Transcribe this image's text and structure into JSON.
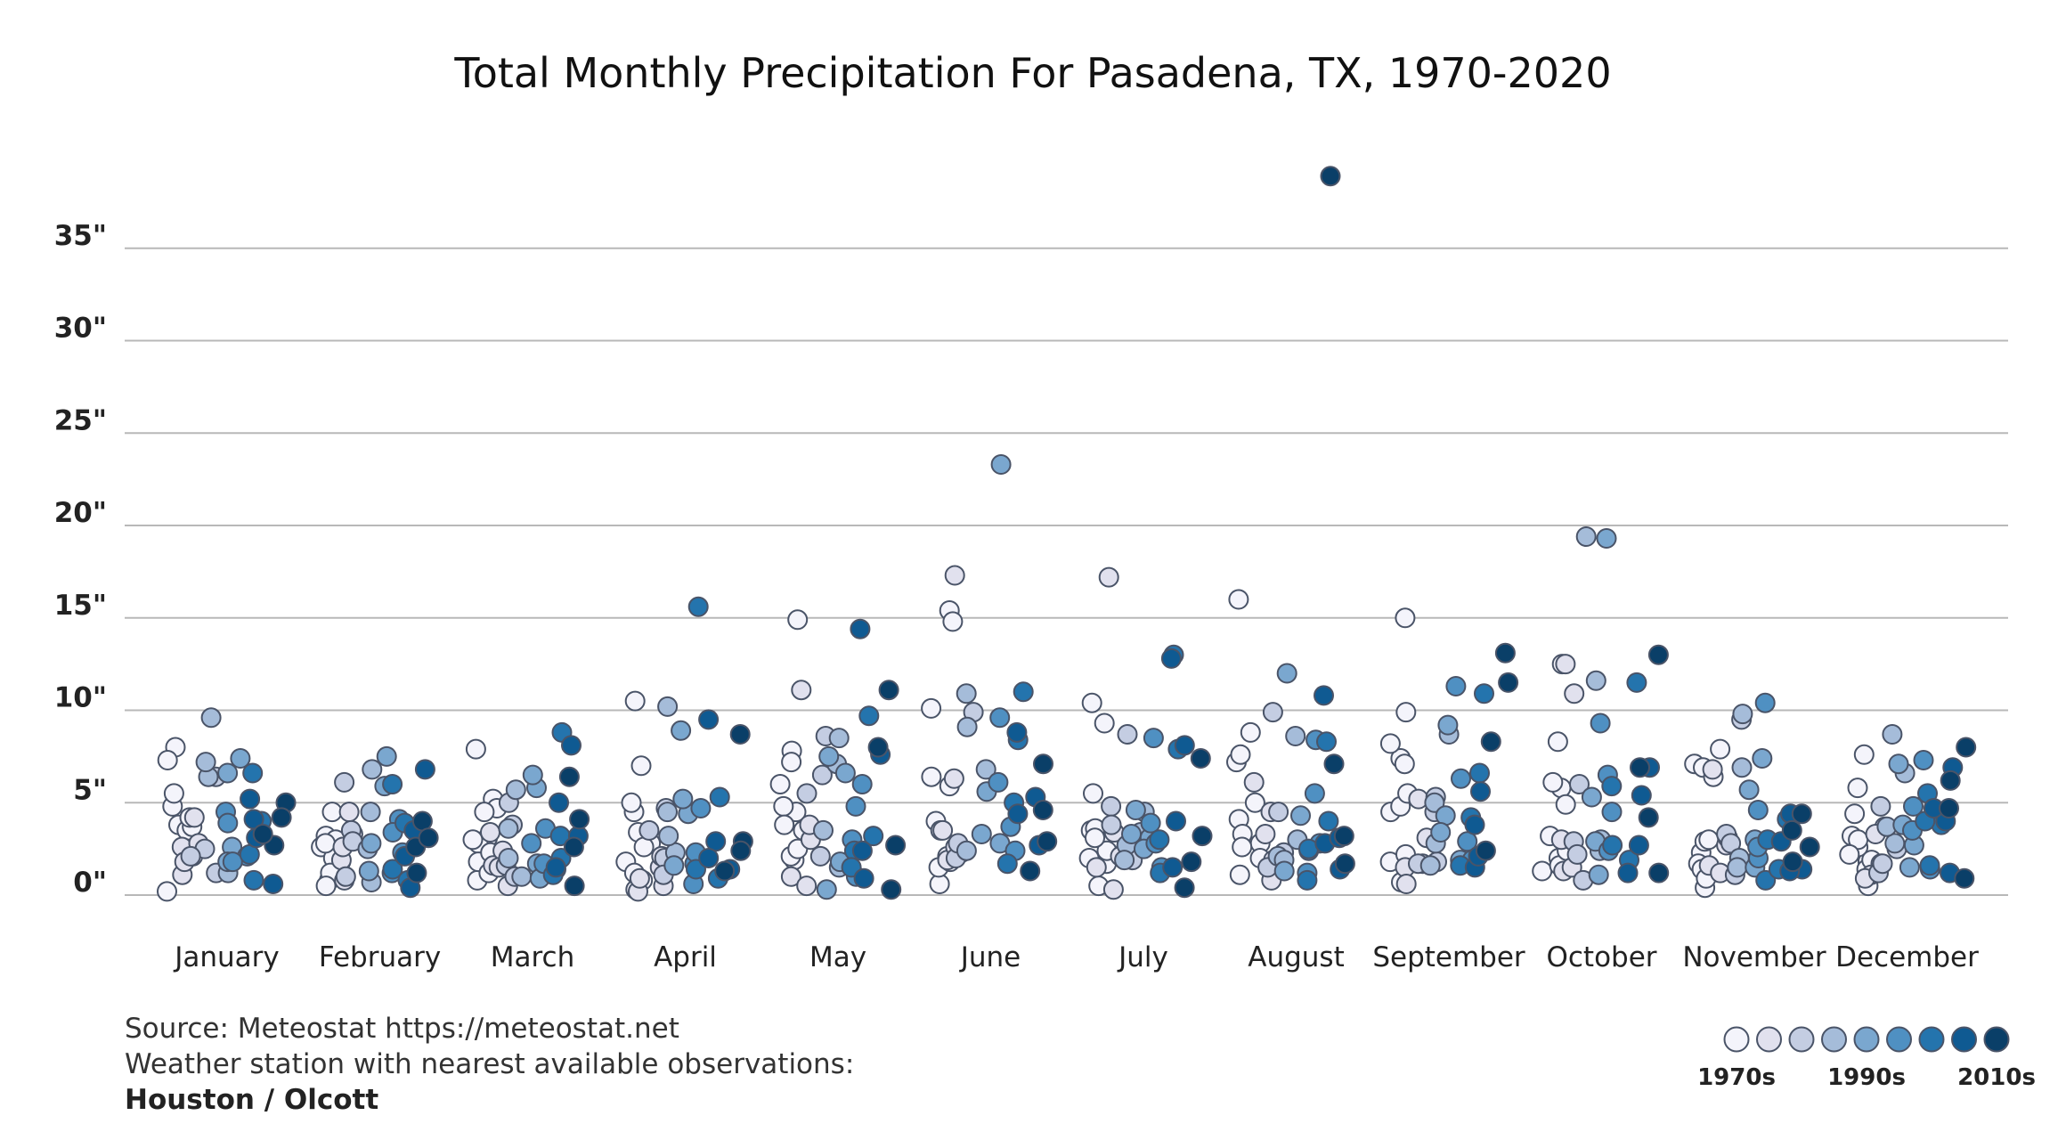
{
  "chart_data": {
    "type": "scatter",
    "title": "Total Monthly Precipitation For Pasadena, TX, 1970-2020",
    "ylim": [
      0,
      39
    ],
    "y_ticks": [
      0,
      5,
      10,
      15,
      20,
      25,
      30,
      35
    ],
    "y_tick_labels": [
      "0\"",
      "5\"",
      "10\"",
      "15\"",
      "20\"",
      "25\"",
      "30\"",
      "35\""
    ],
    "grid": true,
    "categories": [
      "January",
      "February",
      "March",
      "April",
      "May",
      "June",
      "July",
      "August",
      "September",
      "October",
      "November",
      "December"
    ],
    "color_scale": {
      "colors": [
        "#f4f4fb",
        "#e1e1ee",
        "#c4cde2",
        "#a5bcd9",
        "#7aa7cf",
        "#4f90c2",
        "#2474ad",
        "#0f5a92",
        "#0a3f68"
      ],
      "labels": [
        "1970s",
        "",
        "",
        "",
        "1990s",
        "",
        "",
        "",
        "2010s"
      ]
    },
    "series": [
      {
        "name": "1970s",
        "decade_index": 0,
        "month_values": [
          [
            0.2,
            2.5,
            3.8,
            4.8,
            3.5,
            8.0,
            3.7,
            5.5,
            2.1,
            7.3,
            4.2
          ],
          [
            1.8,
            3.2,
            0.8,
            2.6,
            1.4,
            4.5,
            2.0,
            3.0,
            1.2,
            2.8,
            0.5
          ],
          [
            0.8,
            5.2,
            3.1,
            4.7,
            2.8,
            1.8,
            7.9,
            4.5,
            1.2,
            2.3,
            3.0
          ],
          [
            0.3,
            2.8,
            10.5,
            7.0,
            1.8,
            4.5,
            3.4,
            2.6,
            1.2,
            5.0,
            0.8
          ],
          [
            1.9,
            14.9,
            7.8,
            3.5,
            4.5,
            7.2,
            2.1,
            6.0,
            4.8,
            2.5,
            3.8
          ],
          [
            0.6,
            1.5,
            5.9,
            15.4,
            14.8,
            2.1,
            10.1,
            4.0,
            1.8,
            3.5,
            6.4
          ],
          [
            2.0,
            3.5,
            9.3,
            10.4,
            2.8,
            3.6,
            1.7,
            2.4,
            5.5,
            3.1,
            0.5
          ],
          [
            2.8,
            16.0,
            8.8,
            7.2,
            2.0,
            4.1,
            3.3,
            7.6,
            1.1,
            2.6,
            5.0
          ],
          [
            1.8,
            9.9,
            7.4,
            4.5,
            4.8,
            7.1,
            15.0,
            5.5,
            2.2,
            8.2,
            0.7
          ],
          [
            1.6,
            8.3,
            12.5,
            2.0,
            1.3,
            5.8,
            4.9,
            3.2,
            1.6,
            6.1,
            2.4
          ],
          [
            0.4,
            7.1,
            2.3,
            6.9,
            1.7,
            7.9,
            2.9,
            6.4,
            1.4,
            3.0,
            0.9
          ],
          [
            1.8,
            0.5,
            5.8,
            3.2,
            7.6,
            2.6,
            1.4,
            3.0,
            1.9,
            2.2,
            4.4
          ]
        ]
      },
      {
        "name": "",
        "decade_index": 1,
        "month_values": [
          [
            2.6,
            1.1,
            2.8,
            4.2,
            1.8
          ],
          [
            1.9,
            2.6,
            3.3,
            4.5,
            0.8
          ],
          [
            1.6,
            0.5,
            2.4,
            1.5,
            3.4
          ],
          [
            0.2,
            1.5,
            0.5,
            2.1,
            0.9
          ],
          [
            11.1,
            1.0,
            3.0,
            0.5,
            3.8
          ],
          [
            17.3,
            3.5,
            1.9,
            6.3,
            2.6
          ],
          [
            17.2,
            2.1,
            0.3,
            3.4,
            1.5
          ],
          [
            3.3,
            1.9,
            6.1,
            4.5,
            0.8
          ],
          [
            1.5,
            3.1,
            0.6,
            1.7,
            5.2
          ],
          [
            12.5,
            1.3,
            10.9,
            1.5,
            3.0
          ],
          [
            1.6,
            2.7,
            6.8,
            1.2,
            3.1
          ],
          [
            1.1,
            3.7,
            1.7,
            3.3,
            0.9
          ]
        ]
      },
      {
        "name": "",
        "decade_index": 2,
        "month_values": [
          [
            1.2,
            2.5,
            6.4,
            2.1
          ],
          [
            1.0,
            3.5,
            6.1,
            2.9
          ],
          [
            1.6,
            1.0,
            5.0,
            3.8
          ],
          [
            3.5,
            2.0,
            1.1,
            4.7
          ],
          [
            8.6,
            6.5,
            5.5,
            2.1
          ],
          [
            9.9,
            2.3,
            2.0,
            2.8
          ],
          [
            4.8,
            8.7,
            3.8,
            1.9
          ],
          [
            2.3,
            1.5,
            4.5,
            9.9
          ],
          [
            1.7,
            4.5,
            1.8,
            5.3
          ],
          [
            2.9,
            6.0,
            2.2,
            0.8
          ],
          [
            3.3,
            1.1,
            2.8,
            9.5
          ],
          [
            4.8,
            1.2,
            1.7,
            2.5
          ]
        ]
      },
      {
        "name": "",
        "decade_index": 3,
        "month_values": [
          [
            6.4,
            9.6,
            7.2,
            1.2
          ],
          [
            6.8,
            0.7,
            2.5,
            4.5
          ],
          [
            5.7,
            3.6,
            2.0,
            1.0
          ],
          [
            4.5,
            10.2,
            2.3,
            3.2
          ],
          [
            8.5,
            7.1,
            1.5,
            3.5
          ],
          [
            10.9,
            6.8,
            9.1,
            2.4
          ],
          [
            2.7,
            4.5,
            1.9,
            3.4
          ],
          [
            3.0,
            2.1,
            8.6,
            1.9
          ],
          [
            2.8,
            1.6,
            5.0,
            8.7
          ],
          [
            11.6,
            2.4,
            3.0,
            19.4
          ],
          [
            2.0,
            9.8,
            6.9,
            1.5
          ],
          [
            6.6,
            8.7,
            2.8,
            3.7
          ]
        ]
      },
      {
        "name": "1990s",
        "decade_index": 4,
        "month_values": [
          [
            7.4,
            6.6,
            2.6,
            1.8
          ],
          [
            7.5,
            1.3,
            5.9,
            2.8
          ],
          [
            5.8,
            1.7,
            6.5,
            0.9
          ],
          [
            4.4,
            8.9,
            1.6,
            5.2
          ],
          [
            6.6,
            1.8,
            0.3,
            7.5
          ],
          [
            23.3,
            2.8,
            5.6,
            3.3
          ],
          [
            3.1,
            2.5,
            3.3,
            4.6
          ],
          [
            12.0,
            4.3,
            1.3,
            2.4
          ],
          [
            9.2,
            1.9,
            4.3,
            3.4
          ],
          [
            5.3,
            19.3,
            2.9,
            1.1
          ],
          [
            7.4,
            3.0,
            1.5,
            5.7
          ],
          [
            7.1,
            3.8,
            2.7,
            1.5
          ]
        ]
      },
      {
        "name": "",
        "decade_index": 5,
        "month_values": [
          [
            4.5,
            2.1,
            3.9,
            1.8
          ],
          [
            4.1,
            1.2,
            2.3,
            3.4
          ],
          [
            1.4,
            3.6,
            2.8,
            1.7
          ],
          [
            1.7,
            4.7,
            0.6,
            2.3
          ],
          [
            4.8,
            3.0,
            6.0,
            1.0
          ],
          [
            9.6,
            2.4,
            6.1,
            3.7
          ],
          [
            2.8,
            8.5,
            1.5,
            3.9
          ],
          [
            5.5,
            2.8,
            1.2,
            8.4
          ],
          [
            11.3,
            2.9,
            1.9,
            6.3
          ],
          [
            9.3,
            4.5,
            2.4,
            6.5
          ],
          [
            4.6,
            2.0,
            2.6,
            10.4
          ],
          [
            3.5,
            4.8,
            7.3,
            1.4
          ]
        ]
      },
      {
        "name": "",
        "decade_index": 6,
        "month_values": [
          [
            4.0,
            0.8,
            6.6,
            2.2
          ],
          [
            6.0,
            1.4,
            0.8,
            3.9
          ],
          [
            8.8,
            1.1,
            3.2,
            2.0
          ],
          [
            15.6,
            1.4,
            5.3,
            0.9
          ],
          [
            9.7,
            2.4,
            1.5,
            3.2
          ],
          [
            11.0,
            8.4,
            5.0,
            1.7
          ],
          [
            13.0,
            7.9,
            3.0,
            1.2
          ],
          [
            8.3,
            0.8,
            4.0,
            2.5
          ],
          [
            10.9,
            1.6,
            6.6,
            4.2
          ],
          [
            11.5,
            5.9,
            1.9,
            2.7
          ],
          [
            4.1,
            0.8,
            3.0,
            1.4
          ],
          [
            5.5,
            3.8,
            1.6,
            4.0
          ]
        ]
      },
      {
        "name": "",
        "decade_index": 7,
        "month_values": [
          [
            0.6,
            5.2,
            3.1,
            4.1
          ],
          [
            6.8,
            2.1,
            0.4,
            3.5
          ],
          [
            8.1,
            5.0,
            1.5,
            3.2
          ],
          [
            9.5,
            1.4,
            2.9,
            2.0
          ],
          [
            14.4,
            7.6,
            0.9,
            2.4
          ],
          [
            8.8,
            5.3,
            2.7,
            4.4
          ],
          [
            12.8,
            8.1,
            1.5,
            4.0
          ],
          [
            10.8,
            2.8,
            1.4,
            3.1
          ],
          [
            5.6,
            1.5,
            3.8,
            2.1
          ],
          [
            6.9,
            2.7,
            1.2,
            5.4
          ],
          [
            4.4,
            1.4,
            2.9,
            1.3
          ],
          [
            6.9,
            4.0,
            1.2,
            4.7
          ]
        ]
      },
      {
        "name": "2010s",
        "decade_index": 8,
        "month_values": [
          [
            5.0,
            4.2,
            2.7,
            3.3
          ],
          [
            4.0,
            2.6,
            1.2,
            3.1
          ],
          [
            6.4,
            2.6,
            0.5,
            4.1
          ],
          [
            8.7,
            2.9,
            1.3,
            2.4
          ],
          [
            11.1,
            2.7,
            0.3,
            8.0
          ],
          [
            7.1,
            4.6,
            1.3,
            2.9
          ],
          [
            7.4,
            0.4,
            3.2,
            1.8
          ],
          [
            38.9,
            7.1,
            3.2,
            1.7
          ],
          [
            13.1,
            11.5,
            8.3,
            2.4
          ],
          [
            13.0,
            6.9,
            4.2,
            1.2
          ],
          [
            4.4,
            1.8,
            2.6,
            3.5
          ],
          [
            8.0,
            6.2,
            0.9,
            4.7
          ]
        ]
      }
    ]
  },
  "footer": {
    "source": "Source: Meteostat https://meteostat.net",
    "station_note": "Weather station with nearest available observations:",
    "station_name": "Houston / Olcott"
  }
}
